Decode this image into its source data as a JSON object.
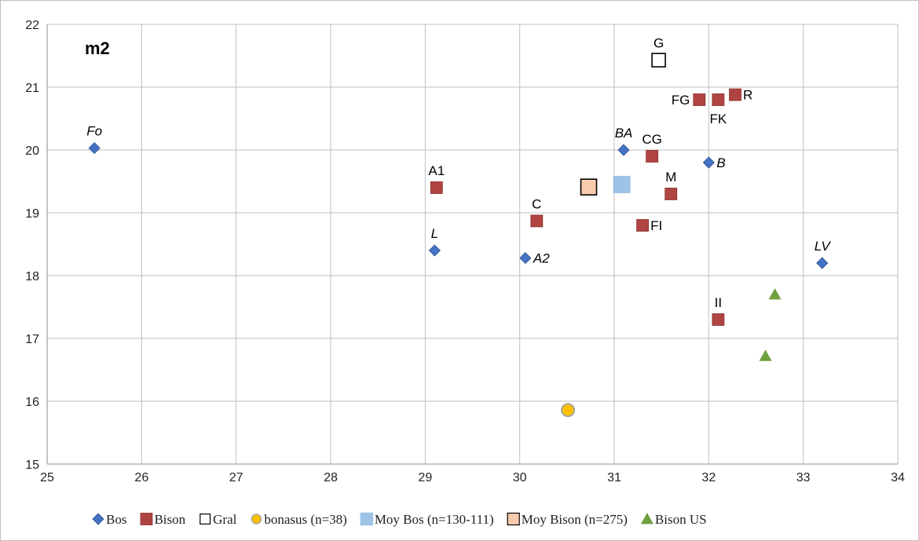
{
  "chart_data": {
    "type": "scatter",
    "title": "m2",
    "xlim": [
      25,
      34
    ],
    "ylim": [
      15,
      22
    ],
    "x_ticks": [
      25,
      26,
      27,
      28,
      29,
      30,
      31,
      32,
      33,
      34
    ],
    "y_ticks": [
      15,
      16,
      17,
      18,
      19,
      20,
      21,
      22
    ],
    "grid": true,
    "legend_position": "bottom",
    "series": [
      {
        "name": "Bos",
        "marker": "diamond",
        "color": "#4472c4",
        "points": [
          {
            "x": 25.5,
            "y": 20.03,
            "label": "Fo",
            "italic": true,
            "pos": "above"
          },
          {
            "x": 29.1,
            "y": 18.4,
            "label": "L",
            "italic": true,
            "pos": "above"
          },
          {
            "x": 30.06,
            "y": 18.28,
            "label": "A2",
            "italic": true,
            "pos": "right"
          },
          {
            "x": 31.1,
            "y": 20.0,
            "label": "BA",
            "italic": true,
            "pos": "above"
          },
          {
            "x": 32.0,
            "y": 19.8,
            "label": "B",
            "italic": true,
            "pos": "right"
          },
          {
            "x": 33.2,
            "y": 18.2,
            "label": "LV",
            "italic": true,
            "pos": "above"
          }
        ]
      },
      {
        "name": "Bison",
        "marker": "square",
        "color": "#b04442",
        "points": [
          {
            "x": 29.12,
            "y": 19.4,
            "label": "A1",
            "italic": false,
            "pos": "above"
          },
          {
            "x": 30.18,
            "y": 18.87,
            "label": "C",
            "italic": false,
            "pos": "above"
          },
          {
            "x": 31.4,
            "y": 19.9,
            "label": "CG",
            "italic": false,
            "pos": "above"
          },
          {
            "x": 31.6,
            "y": 19.3,
            "label": "M",
            "italic": false,
            "pos": "above"
          },
          {
            "x": 31.3,
            "y": 18.8,
            "label": "FI",
            "italic": false,
            "pos": "right"
          },
          {
            "x": 31.9,
            "y": 20.8,
            "label": "FG",
            "italic": false,
            "pos": "left"
          },
          {
            "x": 32.1,
            "y": 20.8,
            "label": "FK",
            "italic": false,
            "pos": "below"
          },
          {
            "x": 32.28,
            "y": 20.88,
            "label": "R",
            "italic": false,
            "pos": "right"
          },
          {
            "x": 32.1,
            "y": 17.3,
            "label": "II",
            "italic": false,
            "pos": "above"
          }
        ]
      },
      {
        "name": "Gral",
        "marker": "open-square",
        "color": "#000000",
        "points": [
          {
            "x": 31.47,
            "y": 21.43,
            "label": "G",
            "italic": false,
            "pos": "above"
          }
        ]
      },
      {
        "name": "bonasus (n=38)",
        "marker": "circle",
        "color": "#ffc000",
        "points": [
          {
            "x": 30.51,
            "y": 15.86,
            "label": "",
            "italic": false,
            "pos": "none"
          }
        ]
      },
      {
        "name": "Moy Bos (n=130-111)",
        "marker": "big-square",
        "color": "#9dc3e6",
        "points": [
          {
            "x": 31.08,
            "y": 19.45,
            "label": "",
            "italic": false,
            "pos": "none"
          }
        ]
      },
      {
        "name": "Moy Bison (n=275)",
        "marker": "outlined-square",
        "color": "#f8cbad",
        "points": [
          {
            "x": 30.73,
            "y": 19.41,
            "label": "",
            "italic": false,
            "pos": "none"
          }
        ]
      },
      {
        "name": "Bison US",
        "marker": "triangle",
        "color": "#70a040",
        "points": [
          {
            "x": 32.7,
            "y": 17.7,
            "label": "",
            "italic": false,
            "pos": "none"
          },
          {
            "x": 32.6,
            "y": 16.72,
            "label": "",
            "italic": false,
            "pos": "none"
          }
        ]
      }
    ]
  }
}
